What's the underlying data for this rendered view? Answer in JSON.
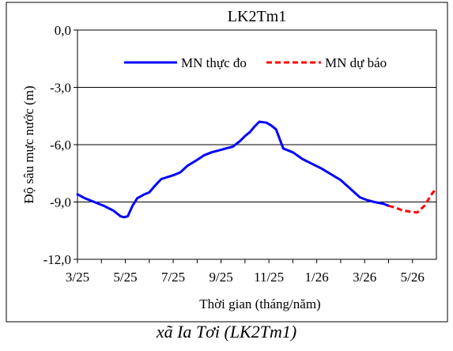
{
  "chart_data": {
    "type": "line",
    "title": "LK2Tm1",
    "ylabel": "Độ sâu mực nước (m)",
    "xlabel": "Thời gian  (tháng/năm)",
    "ylim": [
      -12.0,
      0.0
    ],
    "yticks": [
      0.0,
      -3.0,
      -6.0,
      -9.0,
      -12.0
    ],
    "ytick_labels": [
      "0,0",
      "-3,0",
      "-6,0",
      "-9,0",
      "-12,0"
    ],
    "xlim": [
      0,
      15
    ],
    "xtick_positions": [
      0,
      2,
      4,
      6,
      8,
      10,
      12,
      14
    ],
    "xtick_labels": [
      "3/25",
      "5/25",
      "7/25",
      "9/25",
      "11/25",
      "1/26",
      "3/26",
      "5/26"
    ],
    "grid": "horizontal",
    "legend_position": "top-center",
    "series": [
      {
        "name": "MN thực đo",
        "color": "#0000ff",
        "style": "solid",
        "x": [
          0,
          0.3,
          0.7,
          1.1,
          1.5,
          1.8,
          1.95,
          2.1,
          2.3,
          2.5,
          2.8,
          3.0,
          3.2,
          3.5,
          4.0,
          4.3,
          4.6,
          5.0,
          5.3,
          5.6,
          5.9,
          6.2,
          6.5,
          6.8,
          7.0,
          7.2,
          7.4,
          7.6,
          7.9,
          8.1,
          8.3,
          8.6,
          9.0,
          9.4,
          9.8,
          10.2,
          10.6,
          11.0,
          11.4,
          11.8,
          12.1,
          12.4,
          12.8,
          13.0
        ],
        "y": [
          -8.6,
          -8.8,
          -9.0,
          -9.2,
          -9.45,
          -9.75,
          -9.8,
          -9.75,
          -9.2,
          -8.8,
          -8.6,
          -8.5,
          -8.2,
          -7.8,
          -7.6,
          -7.45,
          -7.1,
          -6.8,
          -6.55,
          -6.4,
          -6.3,
          -6.2,
          -6.1,
          -5.8,
          -5.55,
          -5.35,
          -5.05,
          -4.8,
          -4.85,
          -5.0,
          -5.2,
          -6.2,
          -6.4,
          -6.75,
          -7.0,
          -7.25,
          -7.55,
          -7.85,
          -8.3,
          -8.75,
          -8.9,
          -9.0,
          -9.1,
          -9.2
        ],
        "note": ""
      },
      {
        "name": "MN dự báo",
        "color": "#ff0000",
        "style": "dashed",
        "x": [
          13.0,
          13.3,
          13.6,
          13.9,
          14.2,
          14.5,
          14.7,
          14.85,
          15.0
        ],
        "y": [
          -9.2,
          -9.3,
          -9.45,
          -9.5,
          -9.55,
          -9.2,
          -8.8,
          -8.5,
          -8.35
        ]
      }
    ]
  },
  "caption": "xã Ia Tơi (LK2Tm1)"
}
